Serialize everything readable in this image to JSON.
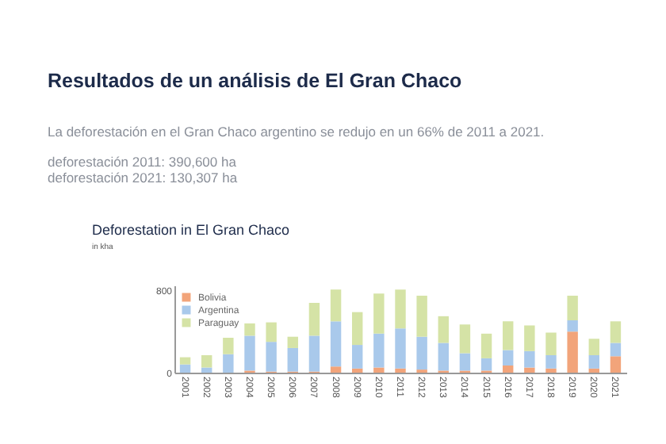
{
  "chart_data": {
    "type": "bar",
    "title": "Deforestation in El Gran Chaco",
    "subtitle": "in kha",
    "annotations": [
      "Resultados de un análisis de El Gran Chaco",
      "La deforestación en el Gran Chaco argentino se redujo en un 66% de 2011 a 2021.",
      "deforestación 2011: 390,600 ha",
      "deforestación 2021: 130,307 ha"
    ],
    "categories": [
      "2001",
      "2002",
      "2003",
      "2004",
      "2005",
      "2006",
      "2007",
      "2008",
      "2009",
      "2010",
      "2011",
      "2012",
      "2013",
      "2014",
      "2015",
      "2016",
      "2017",
      "2018",
      "2019",
      "2020",
      "2021"
    ],
    "stacked": true,
    "series": [
      {
        "name": "Bolivia",
        "color": "#f2a47a",
        "values": [
          null,
          null,
          null,
          20,
          10,
          10,
          10,
          60,
          40,
          50,
          40,
          30,
          20,
          20,
          20,
          70,
          50,
          40,
          400,
          40,
          160
        ]
      },
      {
        "name": "Argentina",
        "color": "#a9c9eb",
        "values": [
          80,
          50,
          180,
          340,
          290,
          230,
          350,
          440,
          230,
          330,
          390,
          320,
          270,
          170,
          120,
          150,
          160,
          130,
          110,
          130,
          130
        ]
      },
      {
        "name": "Paraguay",
        "color": "#d5e3a6",
        "values": [
          70,
          120,
          160,
          120,
          190,
          110,
          320,
          310,
          320,
          390,
          380,
          400,
          260,
          280,
          240,
          280,
          250,
          220,
          240,
          160,
          210
        ]
      }
    ],
    "ylim": [
      0,
      850
    ],
    "yticks": [
      0,
      800
    ],
    "legend": "top left"
  }
}
